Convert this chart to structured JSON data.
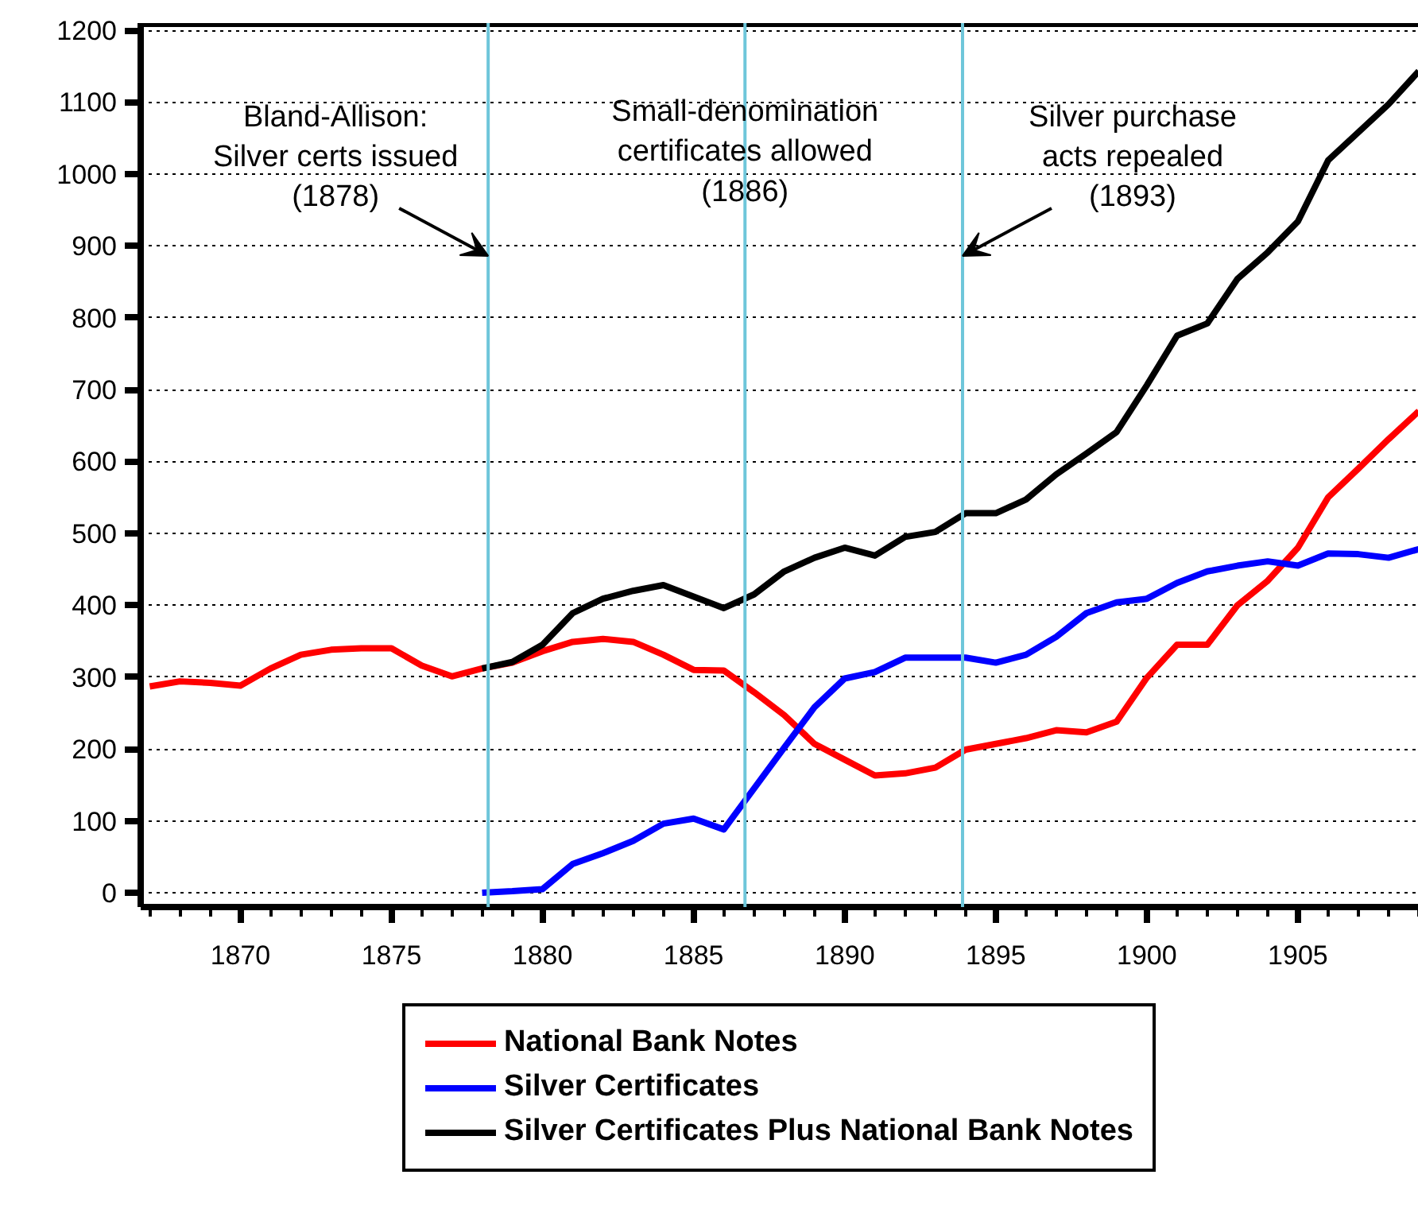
{
  "chart_data": {
    "type": "line",
    "series": [
      {
        "name": "National Bank Notes",
        "color": "#ff0000",
        "x": [
          1867,
          1868,
          1869,
          1870,
          1871,
          1872,
          1873,
          1874,
          1875,
          1876,
          1877,
          1878,
          1879,
          1880,
          1881,
          1882,
          1883,
          1884,
          1885,
          1886,
          1887,
          1888,
          1889,
          1890,
          1891,
          1892,
          1893,
          1894,
          1895,
          1896,
          1897,
          1898,
          1899,
          1900,
          1901,
          1902,
          1903,
          1904,
          1905,
          1906,
          1907,
          1908,
          1909
        ],
        "values": [
          287,
          294,
          292,
          288,
          312,
          331,
          338,
          340,
          340,
          316,
          301,
          312,
          320,
          336,
          349,
          353,
          349,
          331,
          310,
          309,
          279,
          247,
          207,
          185,
          163,
          166,
          174,
          199,
          207,
          215,
          226,
          223,
          238,
          299,
          345,
          345,
          400,
          434,
          480,
          550,
          590,
          631,
          670
        ]
      },
      {
        "name": "Silver Certificates",
        "color": "#0000ff",
        "x": [
          1878,
          1879,
          1880,
          1881,
          1882,
          1883,
          1884,
          1885,
          1886,
          1887,
          1888,
          1889,
          1890,
          1891,
          1892,
          1893,
          1894,
          1895,
          1896,
          1897,
          1898,
          1899,
          1900,
          1901,
          1902,
          1903,
          1904,
          1905,
          1906,
          1907,
          1908,
          1909
        ],
        "values": [
          0,
          2,
          5,
          40,
          55,
          72,
          96,
          103,
          88,
          145,
          202,
          258,
          298,
          307,
          327,
          327,
          327,
          320,
          331,
          356,
          389,
          404,
          409,
          431,
          447,
          455,
          461,
          455,
          472,
          471,
          466,
          478
        ]
      },
      {
        "name": "Silver Certificates Plus National Bank Notes",
        "color": "#000000",
        "x": [
          1878,
          1879,
          1880,
          1881,
          1882,
          1883,
          1884,
          1885,
          1886,
          1887,
          1888,
          1889,
          1890,
          1891,
          1892,
          1893,
          1894,
          1895,
          1896,
          1897,
          1898,
          1899,
          1900,
          1901,
          1902,
          1903,
          1904,
          1905,
          1906,
          1907,
          1908,
          1909
        ],
        "values": [
          312,
          321,
          345,
          389,
          409,
          420,
          428,
          412,
          396,
          415,
          447,
          466,
          480,
          469,
          495,
          502,
          528,
          528,
          547,
          582,
          611,
          641,
          706,
          775,
          792,
          854,
          891,
          934,
          1019,
          1058,
          1097,
          1143
        ]
      }
    ],
    "xlim": [
      1866.7,
      1909
    ],
    "xticks": [
      1870,
      1875,
      1880,
      1885,
      1890,
      1895,
      1900,
      1905
    ],
    "ylim": [
      -20,
      1210
    ],
    "yticks": [
      0,
      100,
      200,
      300,
      400,
      500,
      600,
      700,
      800,
      900,
      1000,
      1100,
      1200
    ],
    "grid": "y",
    "legend": "bottom",
    "line_style": "solid",
    "ref_lines": [
      {
        "axis": "x",
        "value": 1878.2,
        "label": null,
        "color": "#6ec6da"
      },
      {
        "axis": "x",
        "value": 1886.7,
        "label": null,
        "color": "#6ec6da"
      },
      {
        "axis": "x",
        "value": 1893.9,
        "label": null,
        "color": "#6ec6da"
      }
    ],
    "annotations": [
      {
        "text": "Bland-Allison:\nSilver certs issued\n(1878)",
        "x": 1878.2,
        "y": 886
      },
      "Small-denomination\ncertificates allowed\n(1886)",
      {
        "text": "Silver purchase\nacts repealed\n(1893)",
        "x": 1893.9,
        "y": 886
      }
    ]
  }
}
